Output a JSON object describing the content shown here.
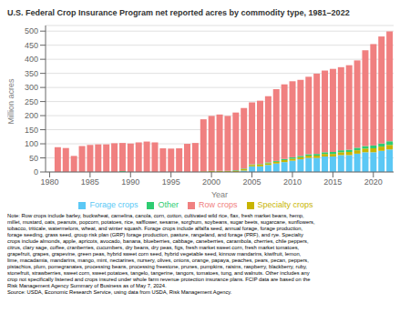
{
  "chart_data": {
    "type": "bar",
    "stacked": true,
    "grid": true,
    "legend": "bottom",
    "title": "U.S. Federal Crop Insurance Program net reported acres by commodity type, 1981–2022",
    "xlabel": "Year",
    "ylabel": "Million acres",
    "x": [
      1981,
      1982,
      1983,
      1984,
      1985,
      1986,
      1987,
      1988,
      1989,
      1990,
      1991,
      1992,
      1993,
      1994,
      1995,
      1996,
      1997,
      1998,
      1999,
      2000,
      2001,
      2002,
      2003,
      2004,
      2005,
      2006,
      2007,
      2008,
      2009,
      2010,
      2011,
      2012,
      2013,
      2014,
      2015,
      2016,
      2017,
      2018,
      2019,
      2020,
      2021,
      2022
    ],
    "xlim": [
      1979.5,
      2022.5
    ],
    "xticks": [
      1980,
      1985,
      1990,
      1995,
      2000,
      2005,
      2010,
      2015,
      2020
    ],
    "ylim": [
      0,
      520
    ],
    "yticks": [
      0,
      50,
      100,
      150,
      200,
      250,
      300,
      350,
      400,
      450,
      500
    ],
    "series": [
      {
        "name": "Forage crops",
        "color": "#5bc8f5",
        "values": [
          0,
          0,
          0,
          0,
          0,
          0,
          0,
          0,
          0,
          0,
          0,
          0,
          0,
          0,
          0,
          0,
          0,
          0,
          0,
          0,
          0,
          0,
          0,
          5,
          20,
          20,
          25,
          30,
          35,
          40,
          45,
          50,
          50,
          55,
          55,
          60,
          60,
          65,
          70,
          70,
          75,
          80
        ]
      },
      {
        "name": "Specialty crops",
        "color": "#c8b400",
        "values": [
          0,
          0,
          0,
          0,
          0,
          0,
          0,
          0,
          0,
          0,
          0,
          0,
          0,
          0,
          0,
          0,
          0,
          0,
          2,
          3,
          3,
          3,
          4,
          5,
          5,
          6,
          6,
          6,
          7,
          7,
          7,
          8,
          8,
          9,
          9,
          10,
          11,
          12,
          13,
          14,
          15,
          16
        ]
      },
      {
        "name": "Other",
        "color": "#2ecc71",
        "values": [
          0,
          0,
          0,
          0,
          0,
          0,
          0,
          0,
          3,
          0,
          0,
          0,
          0,
          0,
          0,
          0,
          0,
          0,
          0,
          1,
          1,
          1,
          2,
          2,
          2,
          2,
          3,
          3,
          4,
          5,
          5,
          5,
          6,
          6,
          7,
          7,
          8,
          9,
          9,
          10,
          11,
          13
        ]
      },
      {
        "name": "Row crops",
        "color": "#f08080",
        "values": [
          88,
          85,
          57,
          92,
          96,
          98,
          98,
          102,
          100,
          101,
          105,
          108,
          105,
          84,
          83,
          84,
          100,
          103,
          185,
          195,
          200,
          195,
          205,
          215,
          220,
          225,
          235,
          255,
          265,
          270,
          270,
          275,
          285,
          290,
          295,
          295,
          300,
          310,
          340,
          360,
          380,
          390
        ]
      }
    ],
    "notes": [
      "Note: Row crops include barley, buckwheat, camelina, canola, corn, cotton, cultivated wild rice, flax, fresh market beans, hemp,",
      "millet, mustard, oats, peanuts, popcorn, potatoes, rice, safflower, sesame, sorghum, soybeans, sugar beets, sugarcane, sunflowers,",
      "tobacco, triticale, watermelons, wheat, and winter squash. Forage crops include alfalfa seed, annual forage, forage production,",
      "forage seeding, grass seed, group risk plan (GRP) forage production, pasture, rangeland, and forage (PRF), and rye. Specialty",
      "crops include almonds, apple, apricots, avocado, banana, blueberries, cabbage, caneberries, carambola, cherries, chile peppers,",
      "citrus, clary sage, coffee, cranberries, cucumbers, dry beans, dry peas, figs, fresh market sweet corn, fresh market tomatoes,",
      "grapefruit, grapes, grapevine, green peas, hybrid sweet corn seed, hybrid vegetable seed, kinnow mandarins, kiwifruit, lemon,",
      "lime, macadamia, mandarins, mango, mint, nectarines, nursery, olives, onions, orange, papaya, peaches, pears, pecan, peppers,",
      "pistachios, plum, pomegranates, processing beans, processing freestone, prunes, pumpkins, raisins, raspberry, blackberry, ruby,",
      "stonefruit, strawberries, sweet corn, sweet potatoes, tangelo, tangerine, tangors, tomatoes, tung, and walnuts. Other includes any",
      "crop not specifically listened and crops insured under whole farm revenue protection insurance plans. FCIP data are based on the",
      "Risk Management Agency Summary of Business as of May 7, 2024.",
      "Source: USDA, Economic Research Service, using data from USDA, Risk Management Agency."
    ]
  }
}
